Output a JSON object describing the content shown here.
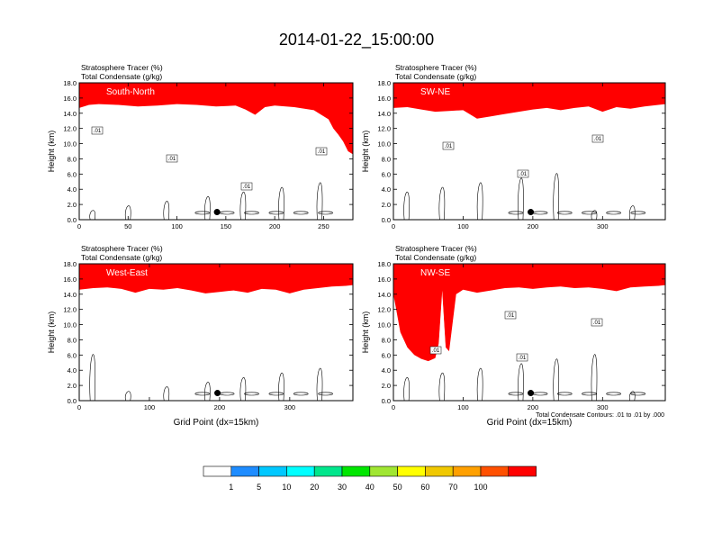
{
  "figure": {
    "title": "2014-01-22_15:00:00",
    "contour_note": "Total Condensate Contours: .01 to .01 by .000"
  },
  "colorbar": {
    "colors": [
      "#ffffff",
      "#1e8cff",
      "#00c8ff",
      "#00ffff",
      "#00e68c",
      "#00e600",
      "#a0e632",
      "#ffff00",
      "#f0c800",
      "#ffa000",
      "#ff5000",
      "#ff0000"
    ],
    "labels": [
      "1",
      "5",
      "10",
      "20",
      "30",
      "40",
      "50",
      "60",
      "70",
      "100"
    ]
  },
  "chart_data": [
    {
      "type": "heatmap",
      "panel_label": "South-North",
      "header_line1": "Stratosphere Tracer   (%)",
      "header_line2": "Total Condensate   (g/kg)",
      "ylabel": "Height (km)",
      "xlabel": "",
      "xlim": [
        0,
        280
      ],
      "ylim": [
        0,
        18
      ],
      "xticks": [
        "0",
        "50",
        "100",
        "150",
        "200",
        "250"
      ],
      "xtick_values": [
        0,
        50,
        100,
        150,
        200,
        250
      ],
      "yticks": [
        "0.0",
        "2.0",
        "4.0",
        "6.0",
        "8.0",
        "10.0",
        "12.0",
        "14.0",
        "16.0",
        "18.0"
      ],
      "contour_labels": [
        ".01",
        ".01",
        ".01",
        ".01"
      ],
      "marker_x": 141,
      "marker_y": 1.0,
      "tracer_boundary": {
        "x": [
          0,
          10,
          20,
          40,
          60,
          80,
          100,
          120,
          140,
          160,
          170,
          180,
          190,
          200,
          220,
          240,
          255,
          260,
          265,
          270,
          275,
          280
        ],
        "bot": [
          14.7,
          15.1,
          15.2,
          15.1,
          14.9,
          15.0,
          15.2,
          15.1,
          14.9,
          15.0,
          14.5,
          13.8,
          14.8,
          15.0,
          14.8,
          14.4,
          13.2,
          12.0,
          11.2,
          10.3,
          9.0,
          8.6
        ]
      }
    },
    {
      "type": "heatmap",
      "panel_label": "SW-NE",
      "header_line1": "Stratosphere Tracer   (%)",
      "header_line2": "Total Condensate   (g/kg)",
      "ylabel": "Height (km)",
      "xlabel": "",
      "xlim": [
        0,
        390
      ],
      "ylim": [
        0,
        18
      ],
      "xticks": [
        "0",
        "100",
        "200",
        "300"
      ],
      "xtick_values": [
        0,
        100,
        200,
        300
      ],
      "yticks": [
        "0.0",
        "2.0",
        "4.0",
        "6.0",
        "8.0",
        "10.0",
        "12.0",
        "14.0",
        "16.0",
        "18.0"
      ],
      "contour_labels": [
        ".01",
        ".01",
        ".01"
      ],
      "marker_x": 197,
      "marker_y": 1.0,
      "tracer_boundary": {
        "x": [
          0,
          20,
          40,
          60,
          80,
          100,
          120,
          140,
          160,
          180,
          200,
          220,
          240,
          260,
          280,
          300,
          320,
          340,
          360,
          380,
          390
        ],
        "bot": [
          14.7,
          14.8,
          14.5,
          14.2,
          14.3,
          14.4,
          13.3,
          13.6,
          13.9,
          14.2,
          14.5,
          14.7,
          14.4,
          14.7,
          14.9,
          14.2,
          14.8,
          14.6,
          14.9,
          15.1,
          15.2
        ]
      }
    },
    {
      "type": "heatmap",
      "panel_label": "West-East",
      "header_line1": "Stratosphere Tracer   (%)",
      "header_line2": "Total Condensate   (g/kg)",
      "ylabel": "Height (km)",
      "xlabel": "Grid Point (dx=15km)",
      "xlim": [
        0,
        390
      ],
      "ylim": [
        0,
        18
      ],
      "xticks": [
        "0",
        "100",
        "200",
        "300"
      ],
      "xtick_values": [
        0,
        100,
        200,
        300
      ],
      "yticks": [
        "0.0",
        "2.0",
        "4.0",
        "6.0",
        "8.0",
        "10.0",
        "12.0",
        "14.0",
        "16.0",
        "18.0"
      ],
      "contour_labels": [],
      "marker_x": 197,
      "marker_y": 1.0,
      "tracer_boundary": {
        "x": [
          0,
          20,
          40,
          60,
          80,
          100,
          120,
          140,
          160,
          180,
          200,
          220,
          240,
          260,
          280,
          300,
          320,
          340,
          360,
          380,
          390
        ],
        "bot": [
          14.6,
          14.8,
          14.9,
          14.7,
          14.2,
          14.7,
          14.6,
          14.8,
          14.5,
          14.1,
          14.3,
          14.5,
          14.2,
          14.7,
          14.6,
          14.1,
          14.6,
          14.8,
          15.0,
          15.1,
          15.2
        ]
      }
    },
    {
      "type": "heatmap",
      "panel_label": "NW-SE",
      "header_line1": "Stratosphere Tracer   (%)",
      "header_line2": "Total Condensate   (g/kg)",
      "ylabel": "Height (km)",
      "xlabel": "Grid Point (dx=15km)",
      "xlim": [
        0,
        390
      ],
      "ylim": [
        0,
        18
      ],
      "xticks": [
        "0",
        "100",
        "200",
        "300"
      ],
      "xtick_values": [
        0,
        100,
        200,
        300
      ],
      "yticks": [
        "0.0",
        "2.0",
        "4.0",
        "6.0",
        "8.0",
        "10.0",
        "12.0",
        "14.0",
        "16.0",
        "18.0"
      ],
      "contour_labels": [
        ".01",
        ".01",
        ".01",
        ".01"
      ],
      "marker_x": 197,
      "marker_y": 1.0,
      "tracer_boundary": {
        "x": [
          0,
          10,
          20,
          30,
          40,
          50,
          60,
          65,
          70,
          75,
          80,
          90,
          100,
          120,
          140,
          160,
          180,
          200,
          220,
          240,
          260,
          280,
          300,
          320,
          340,
          360,
          380,
          390
        ],
        "bot": [
          14.0,
          9.0,
          7.0,
          6.0,
          5.5,
          5.2,
          5.6,
          7.5,
          14.5,
          7.0,
          6.5,
          14.0,
          14.6,
          14.2,
          14.5,
          14.8,
          14.9,
          14.7,
          14.9,
          15.0,
          14.8,
          14.9,
          14.7,
          14.4,
          14.9,
          15.0,
          15.1,
          15.2
        ]
      }
    }
  ]
}
